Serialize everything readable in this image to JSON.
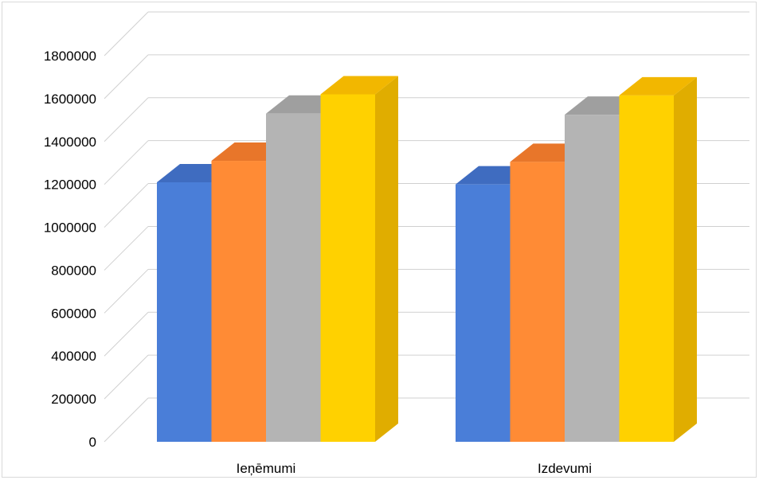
{
  "chart_data": {
    "type": "bar",
    "categories": [
      "Ieņēmumi",
      "Izdevumi"
    ],
    "series": [
      {
        "values": [
          1210000,
          1200000
        ]
      },
      {
        "values": [
          1310000,
          1305000
        ]
      },
      {
        "values": [
          1530000,
          1525000
        ]
      },
      {
        "values": [
          1620000,
          1615000
        ]
      }
    ],
    "ylim": [
      0,
      1800000
    ],
    "y_ticks": [
      0,
      200000,
      400000,
      600000,
      800000,
      1000000,
      1200000,
      1400000,
      1600000,
      1800000
    ],
    "y_tick_labels": [
      "0",
      "200000",
      "400000",
      "600000",
      "800000",
      "1000000",
      "1200000",
      "1400000",
      "1600000",
      "1800000"
    ],
    "grid": true,
    "style": "3d-column",
    "legend": "none"
  },
  "colors": {
    "series": [
      "#4a7ed8",
      "#ff8b35",
      "#b4b4b4",
      "#ffd100"
    ],
    "series_top": [
      "#3f6cc0",
      "#e8762a",
      "#9f9f9f",
      "#f2b700"
    ],
    "series_side": [
      "#3a62ad",
      "#d66b22",
      "#929292",
      "#e0ad00"
    ],
    "gridline": "#d0d0d0"
  }
}
